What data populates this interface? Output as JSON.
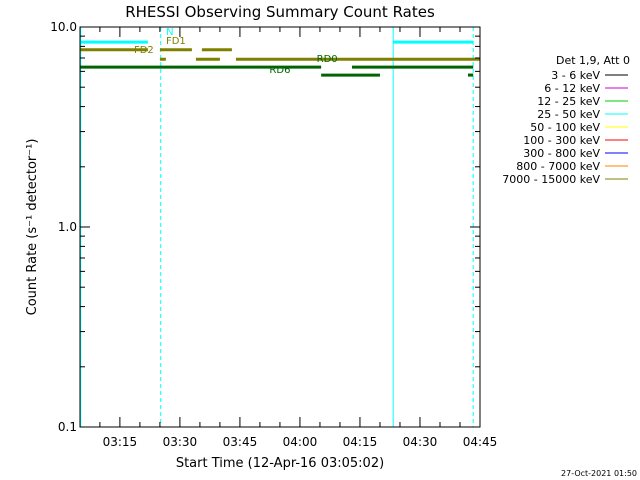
{
  "chart_data": {
    "type": "line",
    "title": "RHESSI Observing Summary Count Rates",
    "xlabel": "Start Time (12-Apr-16 03:05:02)",
    "ylabel": "Count Rate (s⁻¹ detector⁻¹)",
    "yscale": "log",
    "ylim": [
      0.1,
      10.0
    ],
    "xlim_minutes": [
      185.03,
      285.0
    ],
    "y_ticks": [
      {
        "v": 0.1,
        "label": "0.1"
      },
      {
        "v": 1.0,
        "label": "1.0"
      },
      {
        "v": 10.0,
        "label": "10.0"
      }
    ],
    "x_ticks": [
      {
        "m": 195,
        "label": "03:15"
      },
      {
        "m": 210,
        "label": "03:30"
      },
      {
        "m": 225,
        "label": "03:45"
      },
      {
        "m": 240,
        "label": "04:00"
      },
      {
        "m": 255,
        "label": "04:15"
      },
      {
        "m": 270,
        "label": "04:30"
      },
      {
        "m": 285,
        "label": "04:45"
      }
    ],
    "legend": {
      "title": "Det 1,9, Att 0",
      "entries": [
        {
          "label": "3 - 6 keV",
          "color": "#000000"
        },
        {
          "label": "6 - 12 keV",
          "color": "#cc00cc"
        },
        {
          "label": "12 - 25 keV",
          "color": "#00cc00"
        },
        {
          "label": "25 - 50 keV",
          "color": "#00ffff"
        },
        {
          "label": "50 - 100 keV",
          "color": "#ffff00"
        },
        {
          "label": "100 - 300 keV",
          "color": "#ff0000"
        },
        {
          "label": "300 - 800 keV",
          "color": "#0000ff"
        },
        {
          "label": "800 - 7000 keV",
          "color": "#ff8000"
        },
        {
          "label": "7000 - 15000 keV",
          "color": "#808000"
        }
      ]
    },
    "flag_bars": [
      {
        "name": "N",
        "color": "#00ffff",
        "y": 8.4,
        "segments": [
          [
            185.03,
            202.0
          ],
          [
            263.3,
            283.3
          ]
        ]
      },
      {
        "name": "FD1",
        "color": "#808000",
        "y": 7.7,
        "segments": [
          [
            185.03,
            202.0
          ],
          [
            205.0,
            213.0
          ],
          [
            215.5,
            223.0
          ]
        ]
      },
      {
        "name": "FD2",
        "color": "#808000",
        "y": 6.9,
        "segments": [
          [
            205.0,
            206.5
          ],
          [
            214.0,
            220.0
          ],
          [
            224.0,
            285.0
          ]
        ]
      },
      {
        "name": "RD0",
        "color": "#006400",
        "y": 6.3,
        "segments": [
          [
            185.03,
            245.3
          ],
          [
            253.0,
            283.3
          ]
        ]
      },
      {
        "name": "RD6",
        "color": "#006400",
        "y": 5.75,
        "segments": [
          [
            245.3,
            260.0
          ],
          [
            282.0,
            283.3
          ]
        ]
      }
    ],
    "flag_labels": [
      {
        "text": "N",
        "color": "#00ffff",
        "m": 207.5,
        "y": 9.1
      },
      {
        "text": "FD1",
        "color": "#808000",
        "m": 209.0,
        "y": 8.2
      },
      {
        "text": "FD2",
        "color": "#808000",
        "m": 201.0,
        "y": 7.4
      },
      {
        "text": "RD0",
        "color": "#006400",
        "m": 246.8,
        "y": 6.7
      },
      {
        "text": "RD6",
        "color": "#006400",
        "m": 235.0,
        "y": 5.9
      }
    ],
    "attenuator_lines": [
      {
        "m": 185.2,
        "style": "solid",
        "color": "#00ffff"
      },
      {
        "m": 205.2,
        "style": "dashed",
        "color": "#00ffff"
      },
      {
        "m": 263.3,
        "style": "solid",
        "color": "#00ffff"
      },
      {
        "m": 283.3,
        "style": "dashed",
        "color": "#00ffff"
      }
    ],
    "footer": "27-Oct-2021 01:50"
  }
}
